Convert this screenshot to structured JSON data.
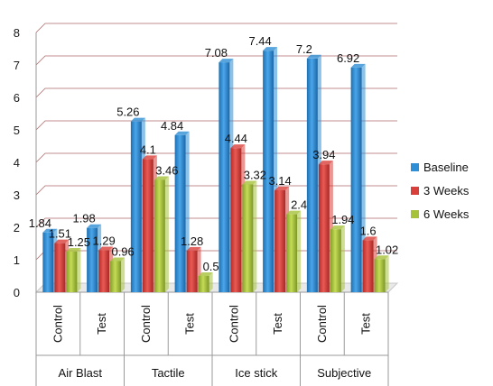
{
  "chart_data": {
    "type": "bar",
    "title": "",
    "xlabel": "",
    "ylabel": "",
    "ylim": [
      0,
      8
    ],
    "yticks": [
      0,
      1,
      2,
      3,
      4,
      5,
      6,
      7,
      8
    ],
    "grid": true,
    "legend_position": "right",
    "groups": [
      {
        "label": "Air Blast",
        "categories": [
          "Control",
          "Test"
        ]
      },
      {
        "label": "Tactile",
        "categories": [
          "Control",
          "Test"
        ]
      },
      {
        "label": "Ice stick",
        "categories": [
          "Control",
          "Test"
        ]
      },
      {
        "label": "Subjective",
        "categories": [
          "Control",
          "Test"
        ]
      }
    ],
    "categories": [
      "Control",
      "Test",
      "Control",
      "Test",
      "Control",
      "Test",
      "Control",
      "Test"
    ],
    "series": [
      {
        "name": "Baseline",
        "color": "#2e8fd6",
        "values": [
          1.84,
          1.98,
          5.26,
          4.84,
          7.08,
          7.44,
          7.2,
          6.92
        ]
      },
      {
        "name": "3 Weeks",
        "color": "#d9403b",
        "values": [
          1.51,
          1.29,
          4.1,
          1.28,
          4.44,
          3.14,
          3.94,
          1.6
        ]
      },
      {
        "name": "6 Weeks",
        "color": "#a6c23a",
        "values": [
          1.25,
          0.96,
          3.46,
          0.5,
          3.32,
          2.4,
          1.94,
          1.02
        ]
      }
    ]
  }
}
